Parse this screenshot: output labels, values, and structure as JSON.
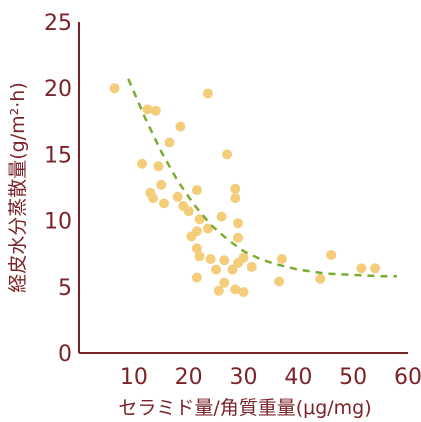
{
  "chart_data": {
    "type": "scatter",
    "title": "",
    "xlabel": "セラミド量/角質重量(μg/mg)",
    "ylabel": "経皮水分蒸散量(g/m²·h)",
    "xlim": [
      0,
      60
    ],
    "ylim": [
      0,
      25
    ],
    "x_ticks": [
      "10",
      "20",
      "30",
      "40",
      "50",
      "60"
    ],
    "y_ticks": [
      "0",
      "5",
      "10",
      "15",
      "20",
      "25"
    ],
    "grid": false,
    "legend": "none",
    "colors": {
      "point": "#f3cd7a",
      "trend": "#7bab2f",
      "axis": "#7a2328",
      "text": "#7a2328"
    },
    "series": [
      {
        "points": [
          [
            6.5,
            20.0
          ],
          [
            12.5,
            18.4
          ],
          [
            14.0,
            18.3
          ],
          [
            23.5,
            19.6
          ],
          [
            18.5,
            17.1
          ],
          [
            16.5,
            15.9
          ],
          [
            11.5,
            14.3
          ],
          [
            14.5,
            14.1
          ],
          [
            15.0,
            12.7
          ],
          [
            13.0,
            12.1
          ],
          [
            13.5,
            11.7
          ],
          [
            15.5,
            11.3
          ],
          [
            18.0,
            11.8
          ],
          [
            19.0,
            11.1
          ],
          [
            21.5,
            12.3
          ],
          [
            20.0,
            10.7
          ],
          [
            22.0,
            10.1
          ],
          [
            20.5,
            8.8
          ],
          [
            21.5,
            9.2
          ],
          [
            23.5,
            9.4
          ],
          [
            26.0,
            10.3
          ],
          [
            27.0,
            15.0
          ],
          [
            28.5,
            12.4
          ],
          [
            28.5,
            11.7
          ],
          [
            29.0,
            9.8
          ],
          [
            29.0,
            8.7
          ],
          [
            21.5,
            7.9
          ],
          [
            22.0,
            7.3
          ],
          [
            24.0,
            7.1
          ],
          [
            25.0,
            6.3
          ],
          [
            26.5,
            7.0
          ],
          [
            28.0,
            6.3
          ],
          [
            29.0,
            6.8
          ],
          [
            30.0,
            7.2
          ],
          [
            31.5,
            6.5
          ],
          [
            21.5,
            5.7
          ],
          [
            25.5,
            4.7
          ],
          [
            26.5,
            5.3
          ],
          [
            28.5,
            4.8
          ],
          [
            30.0,
            4.6
          ],
          [
            36.5,
            5.4
          ],
          [
            37.0,
            7.1
          ],
          [
            44.0,
            5.6
          ],
          [
            46.0,
            7.4
          ],
          [
            51.5,
            6.4
          ],
          [
            54.0,
            6.4
          ]
        ]
      }
    ],
    "trendline": {
      "style": "dashed",
      "points": [
        [
          9,
          20.7
        ],
        [
          12,
          17.8
        ],
        [
          15,
          15.2
        ],
        [
          18,
          13.0
        ],
        [
          21,
          11.2
        ],
        [
          24,
          9.7
        ],
        [
          27,
          8.6
        ],
        [
          30,
          7.7
        ],
        [
          33,
          7.1
        ],
        [
          36,
          6.7
        ],
        [
          40,
          6.3
        ],
        [
          45,
          6.0
        ],
        [
          50,
          5.9
        ],
        [
          55,
          5.8
        ],
        [
          58,
          5.8
        ]
      ]
    }
  }
}
